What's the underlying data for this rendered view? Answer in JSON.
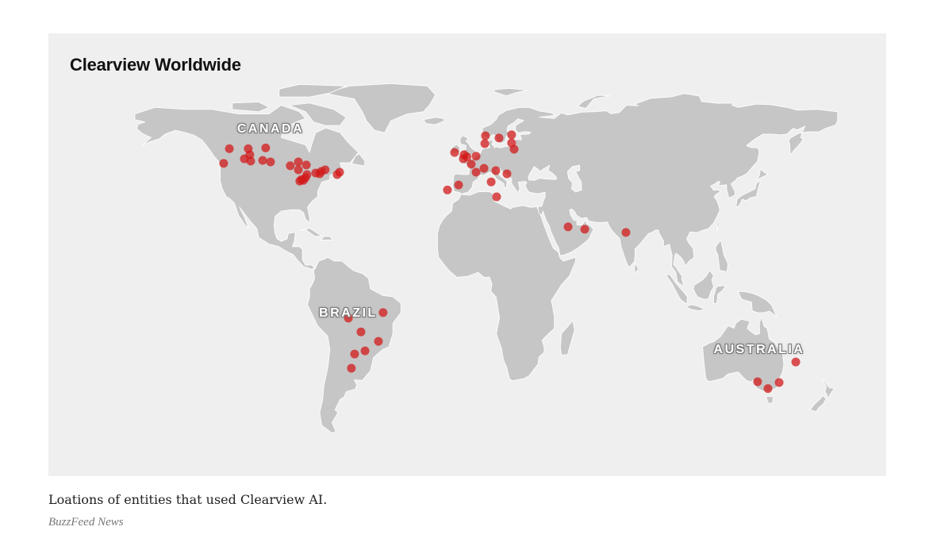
{
  "title": "Clearview Worldwide",
  "caption": "Loations of entities that used Clearview AI.",
  "source": "BuzzFeed News",
  "labels": {
    "canada": "CANADA",
    "brazil": "BRAZIL",
    "australia": "AUSTRALIA"
  },
  "colors": {
    "background": "#efefef",
    "land": "#c6c6c6",
    "border": "#ffffff",
    "dot": "#d11a1a"
  },
  "map": {
    "projection": "robinson-like world map",
    "marker": "red-circle"
  },
  "locations": [
    {
      "lon": -119.5,
      "lat": 53.5
    },
    {
      "lon": -122.3,
      "lat": 47.7
    },
    {
      "lon": -110.2,
      "lat": 53.5
    },
    {
      "lon": -109.4,
      "lat": 51.1
    },
    {
      "lon": -112.1,
      "lat": 49.5
    },
    {
      "lon": -109.0,
      "lat": 48.6
    },
    {
      "lon": -101.6,
      "lat": 53.8
    },
    {
      "lon": -103.1,
      "lat": 48.9
    },
    {
      "lon": -99.2,
      "lat": 48.3
    },
    {
      "lon": -89.5,
      "lat": 46.8
    },
    {
      "lon": -85.5,
      "lat": 48.3
    },
    {
      "lon": -81.6,
      "lat": 47.1
    },
    {
      "lon": -85.5,
      "lat": 45.2
    },
    {
      "lon": -81.3,
      "lat": 43.4
    },
    {
      "lon": -84.0,
      "lat": 41.5
    },
    {
      "lon": -82.0,
      "lat": 42.2
    },
    {
      "lon": -84.8,
      "lat": 40.9
    },
    {
      "lon": -83.0,
      "lat": 41.2
    },
    {
      "lon": -77.0,
      "lat": 44.0
    },
    {
      "lon": -74.2,
      "lat": 44.6
    },
    {
      "lon": -72.3,
      "lat": 45.2
    },
    {
      "lon": -75.0,
      "lat": 43.7
    },
    {
      "lon": -65.2,
      "lat": 44.3
    },
    {
      "lon": -66.4,
      "lat": 43.4
    },
    {
      "lon": 6.6,
      "lat": 58.7
    },
    {
      "lon": 6.3,
      "lat": 55.5
    },
    {
      "lon": 13.3,
      "lat": 57.8
    },
    {
      "lon": 19.5,
      "lat": 59.1
    },
    {
      "lon": 19.5,
      "lat": 55.8
    },
    {
      "lon": 20.7,
      "lat": 53.3
    },
    {
      "lon": -8.6,
      "lat": 52.0
    },
    {
      "lon": -3.9,
      "lat": 51.1
    },
    {
      "lon": -4.3,
      "lat": 49.5
    },
    {
      "lon": -2.5,
      "lat": 50.2
    },
    {
      "lon": 2.0,
      "lat": 50.5
    },
    {
      "lon": -0.4,
      "lat": 47.4
    },
    {
      "lon": 2.0,
      "lat": 44.3
    },
    {
      "lon": 5.9,
      "lat": 45.8
    },
    {
      "lon": 11.7,
      "lat": 44.9
    },
    {
      "lon": 17.2,
      "lat": 43.7
    },
    {
      "lon": 9.4,
      "lat": 40.6
    },
    {
      "lon": -6.6,
      "lat": 39.4
    },
    {
      "lon": -12.1,
      "lat": 37.5
    },
    {
      "lon": 12.1,
      "lat": 34.9
    },
    {
      "lon": 47.3,
      "lat": 23.5
    },
    {
      "lon": 55.5,
      "lat": 22.6
    },
    {
      "lon": 75.8,
      "lat": 21.4
    },
    {
      "lon": -60.9,
      "lat": -11.1
    },
    {
      "lon": -43.8,
      "lat": -9.0
    },
    {
      "lon": -54.7,
      "lat": -16.3
    },
    {
      "lon": -46.1,
      "lat": -19.9
    },
    {
      "lon": -52.7,
      "lat": -23.5
    },
    {
      "lon": -57.8,
      "lat": -24.7
    },
    {
      "lon": -59.4,
      "lat": -30.1
    },
    {
      "lon": 159.4,
      "lat": -27.7
    },
    {
      "lon": 140.6,
      "lat": -35.2
    },
    {
      "lon": 145.7,
      "lat": -37.8
    },
    {
      "lon": 151.2,
      "lat": -35.5
    }
  ]
}
